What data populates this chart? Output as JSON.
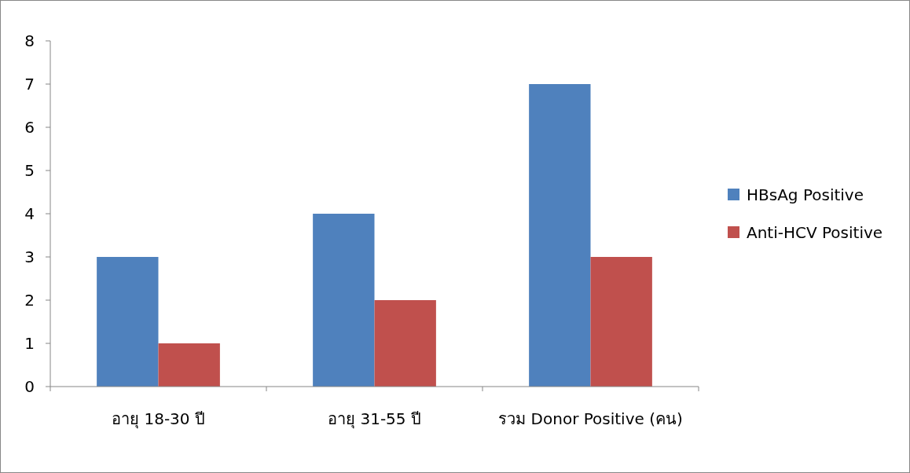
{
  "chart_data": {
    "type": "bar",
    "categories": [
      "อายุ 18-30 ปี",
      "อายุ 31-55 ปี",
      "รวม Donor Positive (คน)"
    ],
    "series": [
      {
        "name": "HBsAg Positive",
        "color": "#4f81bd",
        "values": [
          3,
          4,
          7
        ]
      },
      {
        "name": "Anti-HCV Positive",
        "color": "#c0504d",
        "values": [
          1,
          2,
          3
        ]
      }
    ],
    "ylim": [
      0,
      8
    ],
    "yticks": [
      0,
      1,
      2,
      3,
      4,
      5,
      6,
      7,
      8
    ],
    "legend": "right"
  }
}
